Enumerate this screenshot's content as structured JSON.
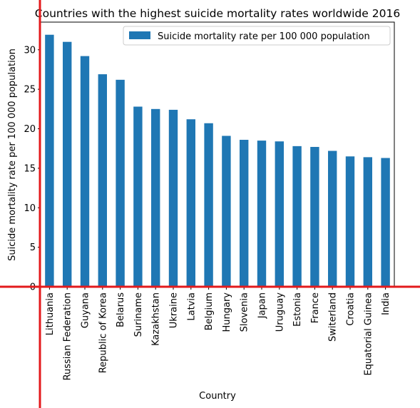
{
  "chart_data": {
    "type": "bar",
    "title": "Countries with the highest suicide mortality rates worldwide 2016",
    "xlabel": "Country",
    "ylabel": "Suicide mortality rate per 100 000 population",
    "ylim": [
      0,
      33.5
    ],
    "yticks": [
      0,
      5,
      10,
      15,
      20,
      25,
      30
    ],
    "grid": false,
    "legend_position": "upper right",
    "bar_color": "#1f77b4",
    "highlight_color": "#e31a1c",
    "categories": [
      "Lithuania",
      "Russian Federation",
      "Guyana",
      "Republic of Korea",
      "Belarus",
      "Suriname",
      "Kazakhstan",
      "Ukraine",
      "Latvia",
      "Belgium",
      "Hungary",
      "Slovenia",
      "Japan",
      "Uruguay",
      "Estonia",
      "France",
      "Switerland",
      "Croatia",
      "Equatorial Guinea",
      "India"
    ],
    "series": [
      {
        "name": "Suicide mortality rate per 100 000 population",
        "values": [
          31.9,
          31.0,
          29.2,
          26.9,
          26.2,
          22.8,
          22.5,
          22.4,
          21.2,
          20.7,
          19.1,
          18.6,
          18.5,
          18.4,
          17.8,
          17.7,
          17.2,
          16.5,
          16.4,
          16.3
        ]
      }
    ]
  }
}
